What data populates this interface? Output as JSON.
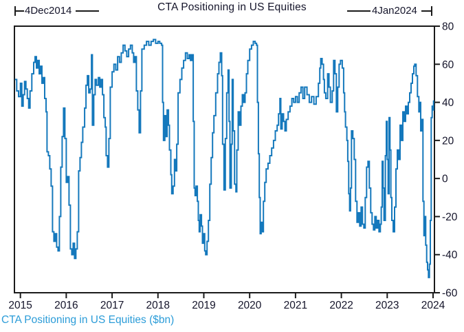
{
  "title": "CTA Positioning in US Equities",
  "footer": "CTA Positioning in US Equities ($bn)",
  "annotations": {
    "start_label": "4Dec2014",
    "end_label": "4Jan2024"
  },
  "colors": {
    "line": "#1478bc",
    "axis": "#1a1a1a",
    "title_text": "#14142a",
    "footer_text": "#2b9cd8",
    "background": "#ffffff"
  },
  "chart_data": {
    "type": "line",
    "step": true,
    "title": "CTA Positioning in US Equities",
    "xlabel": "",
    "ylabel": "",
    "units": "$bn",
    "x_range": [
      2014.87,
      2024.03
    ],
    "y_range": [
      -60,
      80
    ],
    "x_ticks": [
      2015,
      2016,
      2017,
      2018,
      2019,
      2020,
      2021,
      2022,
      2023,
      2024
    ],
    "y_ticks": [
      -60,
      -40,
      -20,
      0,
      20,
      40,
      60,
      80
    ],
    "grid": false,
    "legend": "none",
    "y_axis_position": "right",
    "series": [
      {
        "name": "CTA Positioning in US Equities ($bn)",
        "points": [
          [
            2014.88,
            52
          ],
          [
            2014.92,
            46
          ],
          [
            2014.96,
            43
          ],
          [
            2015.0,
            50
          ],
          [
            2015.03,
            38
          ],
          [
            2015.06,
            44
          ],
          [
            2015.09,
            51
          ],
          [
            2015.12,
            47
          ],
          [
            2015.15,
            42
          ],
          [
            2015.18,
            37
          ],
          [
            2015.21,
            46
          ],
          [
            2015.25,
            55
          ],
          [
            2015.29,
            61
          ],
          [
            2015.32,
            64
          ],
          [
            2015.35,
            58
          ],
          [
            2015.38,
            62
          ],
          [
            2015.41,
            55
          ],
          [
            2015.44,
            59
          ],
          [
            2015.47,
            50
          ],
          [
            2015.5,
            53
          ],
          [
            2015.53,
            42
          ],
          [
            2015.56,
            35
          ],
          [
            2015.58,
            14
          ],
          [
            2015.61,
            12
          ],
          [
            2015.64,
            5
          ],
          [
            2015.67,
            -4
          ],
          [
            2015.7,
            -28
          ],
          [
            2015.73,
            -33
          ],
          [
            2015.76,
            -29
          ],
          [
            2015.79,
            -36
          ],
          [
            2015.82,
            -38
          ],
          [
            2015.85,
            -20
          ],
          [
            2015.88,
            6
          ],
          [
            2015.91,
            22
          ],
          [
            2015.94,
            37
          ],
          [
            2015.97,
            21
          ],
          [
            2016.0,
            -2
          ],
          [
            2016.03,
            1
          ],
          [
            2016.06,
            -14
          ],
          [
            2016.09,
            -37
          ],
          [
            2016.12,
            -40
          ],
          [
            2016.15,
            -34
          ],
          [
            2016.18,
            -42
          ],
          [
            2016.21,
            -37
          ],
          [
            2016.24,
            -28
          ],
          [
            2016.27,
            4
          ],
          [
            2016.3,
            11
          ],
          [
            2016.33,
            19
          ],
          [
            2016.36,
            27
          ],
          [
            2016.4,
            37
          ],
          [
            2016.43,
            49
          ],
          [
            2016.46,
            54
          ],
          [
            2016.49,
            45
          ],
          [
            2016.52,
            47
          ],
          [
            2016.55,
            65
          ],
          [
            2016.57,
            28
          ],
          [
            2016.6,
            44
          ],
          [
            2016.63,
            52
          ],
          [
            2016.66,
            49
          ],
          [
            2016.7,
            53
          ],
          [
            2016.73,
            48
          ],
          [
            2016.76,
            52
          ],
          [
            2016.79,
            44
          ],
          [
            2016.82,
            32
          ],
          [
            2016.85,
            27
          ],
          [
            2016.87,
            12
          ],
          [
            2016.9,
            6
          ],
          [
            2016.93,
            21
          ],
          [
            2016.96,
            48
          ],
          [
            2017.0,
            56
          ],
          [
            2017.04,
            60
          ],
          [
            2017.08,
            57
          ],
          [
            2017.12,
            64
          ],
          [
            2017.16,
            61
          ],
          [
            2017.2,
            66
          ],
          [
            2017.24,
            70
          ],
          [
            2017.28,
            67
          ],
          [
            2017.32,
            64
          ],
          [
            2017.36,
            68
          ],
          [
            2017.4,
            70
          ],
          [
            2017.44,
            66
          ],
          [
            2017.47,
            61
          ],
          [
            2017.5,
            64
          ],
          [
            2017.53,
            46
          ],
          [
            2017.56,
            36
          ],
          [
            2017.59,
            24
          ],
          [
            2017.62,
            46
          ],
          [
            2017.65,
            68
          ],
          [
            2017.7,
            70
          ],
          [
            2017.75,
            72
          ],
          [
            2017.8,
            70
          ],
          [
            2017.85,
            72
          ],
          [
            2017.9,
            73
          ],
          [
            2017.95,
            71
          ],
          [
            2018.0,
            72
          ],
          [
            2018.04,
            71
          ],
          [
            2018.08,
            70
          ],
          [
            2018.1,
            40
          ],
          [
            2018.12,
            20
          ],
          [
            2018.15,
            33
          ],
          [
            2018.17,
            22
          ],
          [
            2018.2,
            36
          ],
          [
            2018.23,
            28
          ],
          [
            2018.25,
            15
          ],
          [
            2018.28,
            2
          ],
          [
            2018.3,
            -8
          ],
          [
            2018.33,
            -4
          ],
          [
            2018.36,
            10
          ],
          [
            2018.38,
            4
          ],
          [
            2018.41,
            18
          ],
          [
            2018.44,
            45
          ],
          [
            2018.48,
            52
          ],
          [
            2018.52,
            58
          ],
          [
            2018.56,
            62
          ],
          [
            2018.6,
            66
          ],
          [
            2018.64,
            63
          ],
          [
            2018.68,
            65
          ],
          [
            2018.71,
            62
          ],
          [
            2018.74,
            65
          ],
          [
            2018.77,
            30
          ],
          [
            2018.79,
            -5
          ],
          [
            2018.81,
            -9
          ],
          [
            2018.83,
            -4
          ],
          [
            2018.86,
            -12
          ],
          [
            2018.88,
            -22
          ],
          [
            2018.9,
            -28
          ],
          [
            2018.92,
            -19
          ],
          [
            2018.95,
            -25
          ],
          [
            2018.97,
            -34
          ],
          [
            2019.0,
            -29
          ],
          [
            2019.02,
            -38
          ],
          [
            2019.04,
            -40
          ],
          [
            2019.07,
            -33
          ],
          [
            2019.1,
            -22
          ],
          [
            2019.13,
            -3
          ],
          [
            2019.16,
            11
          ],
          [
            2019.19,
            24
          ],
          [
            2019.22,
            33
          ],
          [
            2019.26,
            45
          ],
          [
            2019.3,
            55
          ],
          [
            2019.33,
            61
          ],
          [
            2019.36,
            66
          ],
          [
            2019.39,
            54
          ],
          [
            2019.41,
            18
          ],
          [
            2019.44,
            -6
          ],
          [
            2019.47,
            21
          ],
          [
            2019.5,
            45
          ],
          [
            2019.53,
            57
          ],
          [
            2019.55,
            30
          ],
          [
            2019.57,
            -5
          ],
          [
            2019.6,
            18
          ],
          [
            2019.62,
            52
          ],
          [
            2019.64,
            25
          ],
          [
            2019.67,
            -3
          ],
          [
            2019.7,
            -7
          ],
          [
            2019.72,
            15
          ],
          [
            2019.75,
            35
          ],
          [
            2019.78,
            28
          ],
          [
            2019.81,
            38
          ],
          [
            2019.84,
            44
          ],
          [
            2019.87,
            40
          ],
          [
            2019.9,
            45
          ],
          [
            2019.93,
            55
          ],
          [
            2019.96,
            62
          ],
          [
            2020.0,
            68
          ],
          [
            2020.04,
            70
          ],
          [
            2020.08,
            72
          ],
          [
            2020.12,
            71
          ],
          [
            2020.15,
            70
          ],
          [
            2020.17,
            40
          ],
          [
            2020.19,
            13
          ],
          [
            2020.21,
            -10
          ],
          [
            2020.23,
            -29
          ],
          [
            2020.25,
            -23
          ],
          [
            2020.27,
            -28
          ],
          [
            2020.3,
            -12
          ],
          [
            2020.33,
            -2
          ],
          [
            2020.36,
            5
          ],
          [
            2020.4,
            8
          ],
          [
            2020.44,
            12
          ],
          [
            2020.48,
            16
          ],
          [
            2020.52,
            20
          ],
          [
            2020.56,
            25
          ],
          [
            2020.6,
            28
          ],
          [
            2020.63,
            34
          ],
          [
            2020.66,
            42
          ],
          [
            2020.68,
            26
          ],
          [
            2020.71,
            34
          ],
          [
            2020.74,
            30
          ],
          [
            2020.77,
            25
          ],
          [
            2020.8,
            31
          ],
          [
            2020.84,
            35
          ],
          [
            2020.88,
            38
          ],
          [
            2020.92,
            42
          ],
          [
            2020.96,
            40
          ],
          [
            2021.0,
            43
          ],
          [
            2021.04,
            40
          ],
          [
            2021.08,
            45
          ],
          [
            2021.12,
            48
          ],
          [
            2021.16,
            42
          ],
          [
            2021.2,
            48
          ],
          [
            2021.25,
            44
          ],
          [
            2021.3,
            40
          ],
          [
            2021.35,
            43
          ],
          [
            2021.4,
            39
          ],
          [
            2021.45,
            43
          ],
          [
            2021.5,
            50
          ],
          [
            2021.53,
            58
          ],
          [
            2021.55,
            63
          ],
          [
            2021.58,
            60
          ],
          [
            2021.61,
            52
          ],
          [
            2021.63,
            45
          ],
          [
            2021.66,
            42
          ],
          [
            2021.7,
            55
          ],
          [
            2021.73,
            48
          ],
          [
            2021.76,
            40
          ],
          [
            2021.8,
            46
          ],
          [
            2021.83,
            62
          ],
          [
            2021.86,
            55
          ],
          [
            2021.89,
            35
          ],
          [
            2021.92,
            48
          ],
          [
            2021.95,
            60
          ],
          [
            2021.98,
            62
          ],
          [
            2022.02,
            58
          ],
          [
            2022.05,
            45
          ],
          [
            2022.07,
            35
          ],
          [
            2022.09,
            27
          ],
          [
            2022.12,
            20
          ],
          [
            2022.14,
            9
          ],
          [
            2022.16,
            -8
          ],
          [
            2022.18,
            -17
          ],
          [
            2022.2,
            -5
          ],
          [
            2022.22,
            25
          ],
          [
            2022.25,
            21
          ],
          [
            2022.28,
            10
          ],
          [
            2022.31,
            -12
          ],
          [
            2022.34,
            -23
          ],
          [
            2022.37,
            -18
          ],
          [
            2022.4,
            -25
          ],
          [
            2022.43,
            -15
          ],
          [
            2022.46,
            -24
          ],
          [
            2022.49,
            -26
          ],
          [
            2022.52,
            -10
          ],
          [
            2022.55,
            6
          ],
          [
            2022.58,
            9
          ],
          [
            2022.61,
            -5
          ],
          [
            2022.64,
            -18
          ],
          [
            2022.67,
            -24
          ],
          [
            2022.7,
            -27
          ],
          [
            2022.73,
            -20
          ],
          [
            2022.76,
            -26
          ],
          [
            2022.79,
            -22
          ],
          [
            2022.82,
            -28
          ],
          [
            2022.85,
            -24
          ],
          [
            2022.87,
            -15
          ],
          [
            2022.89,
            9
          ],
          [
            2022.91,
            -5
          ],
          [
            2022.93,
            -22
          ],
          [
            2022.96,
            12
          ],
          [
            2022.98,
            30
          ],
          [
            2023.0,
            10
          ],
          [
            2023.02,
            -8
          ],
          [
            2023.04,
            32
          ],
          [
            2023.06,
            15
          ],
          [
            2023.08,
            -10
          ],
          [
            2023.1,
            -22
          ],
          [
            2023.13,
            -28
          ],
          [
            2023.16,
            -15
          ],
          [
            2023.19,
            5
          ],
          [
            2023.22,
            15
          ],
          [
            2023.25,
            10
          ],
          [
            2023.28,
            28
          ],
          [
            2023.31,
            20
          ],
          [
            2023.34,
            35
          ],
          [
            2023.37,
            30
          ],
          [
            2023.4,
            38
          ],
          [
            2023.43,
            34
          ],
          [
            2023.46,
            40
          ],
          [
            2023.49,
            45
          ],
          [
            2023.52,
            50
          ],
          [
            2023.55,
            55
          ],
          [
            2023.58,
            59
          ],
          [
            2023.6,
            60
          ],
          [
            2023.63,
            54
          ],
          [
            2023.66,
            43
          ],
          [
            2023.69,
            35
          ],
          [
            2023.71,
            40
          ],
          [
            2023.73,
            25
          ],
          [
            2023.75,
            31
          ],
          [
            2023.78,
            -12
          ],
          [
            2023.8,
            -30
          ],
          [
            2023.82,
            -20
          ],
          [
            2023.84,
            -35
          ],
          [
            2023.86,
            -44
          ],
          [
            2023.88,
            -48
          ],
          [
            2023.9,
            -52
          ],
          [
            2023.92,
            -45
          ],
          [
            2023.94,
            -22
          ],
          [
            2023.96,
            32
          ],
          [
            2023.98,
            38
          ],
          [
            2024.0,
            36
          ],
          [
            2024.01,
            41
          ]
        ]
      }
    ]
  }
}
